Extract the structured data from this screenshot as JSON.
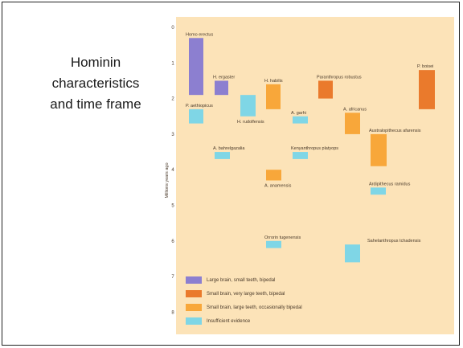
{
  "slide": {
    "title_lines": [
      "Hominin",
      "characteristics",
      "and time frame"
    ]
  },
  "colors": {
    "panel_background": "#fce3b8",
    "purple": "#8c7fd0",
    "dark_orange": "#ea7a2c",
    "light_orange": "#f8a73a",
    "cyan": "#7fd6e6",
    "label_text": "#4a3a2a"
  },
  "chart_data": {
    "type": "range-bar",
    "ylabel": "Millions years ago",
    "ylim": [
      0,
      8
    ],
    "y_ticks": [
      "0",
      "1",
      "2",
      "3",
      "4",
      "5",
      "6",
      "7",
      "8"
    ],
    "series": [
      {
        "label": "Homo erectus",
        "start": 0.3,
        "end": 1.9,
        "category": "large_brain"
      },
      {
        "label": "H. ergaster",
        "start": 1.5,
        "end": 1.9,
        "category": "large_brain"
      },
      {
        "label": "H. habilis",
        "start": 1.6,
        "end": 2.3,
        "category": "small_brain_large_teeth"
      },
      {
        "label": "Paranthropus robustus",
        "start": 1.5,
        "end": 2.0,
        "category": "small_brain_very_large_teeth"
      },
      {
        "label": "P. boisei",
        "start": 1.2,
        "end": 2.3,
        "category": "small_brain_very_large_teeth"
      },
      {
        "label": "P. aethiopicus",
        "start": 2.3,
        "end": 2.7,
        "category": "insufficient"
      },
      {
        "label": "H. rudolfensis",
        "start": 1.9,
        "end": 2.5,
        "category": "insufficient"
      },
      {
        "label": "A. garhi",
        "start": 2.5,
        "end": 2.7,
        "category": "insufficient"
      },
      {
        "label": "A. africanus",
        "start": 2.4,
        "end": 3.0,
        "category": "small_brain_large_teeth"
      },
      {
        "label": "Australopithecus afarensis",
        "start": 3.0,
        "end": 3.9,
        "category": "small_brain_large_teeth"
      },
      {
        "label": "A. bahrelgazalia",
        "start": 3.5,
        "end": 3.7,
        "category": "insufficient"
      },
      {
        "label": "Kenyanthropus platyops",
        "start": 3.5,
        "end": 3.7,
        "category": "insufficient"
      },
      {
        "label": "A. anamensis",
        "start": 4.0,
        "end": 4.3,
        "category": "small_brain_large_teeth"
      },
      {
        "label": "Ardipithecus ramidus",
        "start": 4.5,
        "end": 4.7,
        "category": "insufficient"
      },
      {
        "label": "Orrorin tugenensis",
        "start": 6.0,
        "end": 6.2,
        "category": "insufficient"
      },
      {
        "label": "Sahelanthropus tchadensis",
        "start": 6.1,
        "end": 6.6,
        "category": "insufficient"
      }
    ],
    "legend": [
      {
        "label": "Large brain, small teeth, bipedal",
        "color": "#8c7fd0"
      },
      {
        "label": "Small brain, very large teeth, bipedal",
        "color": "#ea7a2c"
      },
      {
        "label": "Small brain, large teeth, occasionally bipedal",
        "color": "#f8a73a"
      },
      {
        "label": "Insufficient evidence",
        "color": "#7fd6e6"
      }
    ]
  }
}
